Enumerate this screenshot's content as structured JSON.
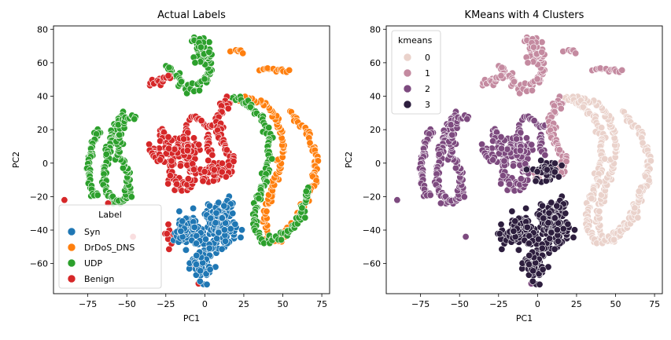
{
  "chart_data": [
    {
      "type": "scatter",
      "title": "Actual Labels",
      "xlabel": "PC1",
      "ylabel": "PC2",
      "xlim": [
        -97,
        80
      ],
      "ylim": [
        -78,
        82
      ],
      "xticks": [
        -75,
        -50,
        -25,
        0,
        25,
        50,
        75
      ],
      "yticks": [
        -60,
        -40,
        -20,
        0,
        20,
        40,
        60,
        80
      ],
      "legend": {
        "title": "Label",
        "position": "lower-left"
      },
      "series": [
        {
          "name": "Syn",
          "color": "#1f77b4"
        },
        {
          "name": "DrDoS_DNS",
          "color": "#ff7f0e"
        },
        {
          "name": "UDP",
          "color": "#2ca02c"
        },
        {
          "name": "Benign",
          "color": "#d62728"
        }
      ]
    },
    {
      "type": "scatter",
      "title": "KMeans with 4 Clusters",
      "xlabel": "PC1",
      "ylabel": "PC2",
      "xlim": [
        -97,
        80
      ],
      "ylim": [
        -78,
        82
      ],
      "xticks": [
        -75,
        -50,
        -25,
        0,
        25,
        50,
        75
      ],
      "yticks": [
        -60,
        -40,
        -20,
        0,
        20,
        40,
        60,
        80
      ],
      "legend": {
        "title": "kmeans",
        "position": "top-left"
      },
      "series": [
        {
          "name": "0",
          "color": "#ead2cb"
        },
        {
          "name": "1",
          "color": "#c48aa0"
        },
        {
          "name": "2",
          "color": "#7d4a7f"
        },
        {
          "name": "3",
          "color": "#2d1e3e"
        }
      ]
    }
  ]
}
